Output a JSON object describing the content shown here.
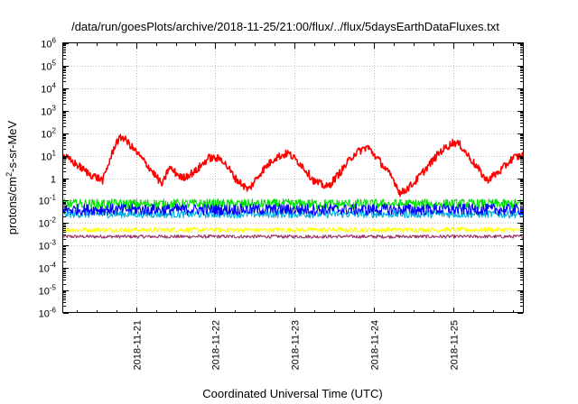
{
  "chart_data": {
    "type": "line",
    "title": "/data/run/goesPlots/archive/2018-11-25/21:00/flux/../flux/5daysEarthDataFluxes.txt",
    "xlabel": "Coordinated Universal Time (UTC)",
    "ylabel": {
      "base": "protons/cm",
      "sup": "2",
      "rest": "-s-sr-MeV"
    },
    "y_scale": "log",
    "ylim": [
      1e-06,
      1000000.0
    ],
    "y_ticks": [
      {
        "base": "10",
        "exp": "-6",
        "value": 1e-06
      },
      {
        "base": "10",
        "exp": "-5",
        "value": 1e-05
      },
      {
        "base": "10",
        "exp": "-4",
        "value": 0.0001
      },
      {
        "base": "10",
        "exp": "-3",
        "value": 0.001
      },
      {
        "base": "10",
        "exp": "-2",
        "value": 0.01
      },
      {
        "base": "10",
        "exp": "-1",
        "value": 0.1
      },
      {
        "base": "1",
        "exp": "",
        "value": 1
      },
      {
        "base": "10",
        "exp": "1",
        "value": 10
      },
      {
        "base": "10",
        "exp": "2",
        "value": 100
      },
      {
        "base": "10",
        "exp": "3",
        "value": 1000
      },
      {
        "base": "10",
        "exp": "4",
        "value": 10000
      },
      {
        "base": "10",
        "exp": "5",
        "value": 100000
      },
      {
        "base": "10",
        "exp": "6",
        "value": 1000000
      }
    ],
    "x_range": [
      "2018-11-20 02:00",
      "2018-11-25 21:00"
    ],
    "x_ticks": [
      "2018-11-21",
      "2018-11-22",
      "2018-11-23",
      "2018-11-24",
      "2018-11-25"
    ],
    "grid": true,
    "legend": "none",
    "series": [
      {
        "color": "#ff0000",
        "x": [
          "2018-11-20 02:00",
          "2018-11-20 06:00",
          "2018-11-20 10:00",
          "2018-11-20 14:00",
          "2018-11-20 18:00",
          "2018-11-20 20:00",
          "2018-11-21 00:00",
          "2018-11-21 04:00",
          "2018-11-21 08:00",
          "2018-11-21 10:00",
          "2018-11-21 14:00",
          "2018-11-21 18:00",
          "2018-11-21 22:00",
          "2018-11-22 02:00",
          "2018-11-22 06:00",
          "2018-11-22 10:00",
          "2018-11-22 14:00",
          "2018-11-22 18:00",
          "2018-11-22 22:00",
          "2018-11-23 02:00",
          "2018-11-23 06:00",
          "2018-11-23 10:00",
          "2018-11-23 14:00",
          "2018-11-23 18:00",
          "2018-11-23 22:00",
          "2018-11-24 02:00",
          "2018-11-24 06:00",
          "2018-11-24 08:00",
          "2018-11-24 12:00",
          "2018-11-24 16:00",
          "2018-11-24 20:00",
          "2018-11-25 00:00",
          "2018-11-25 02:00",
          "2018-11-25 06:00",
          "2018-11-25 10:00",
          "2018-11-25 14:00",
          "2018-11-25 18:00",
          "2018-11-25 21:00"
        ],
        "values": [
          10,
          4,
          1.5,
          0.8,
          40,
          70,
          15,
          3,
          0.5,
          3,
          1,
          2,
          8,
          7,
          1,
          0.3,
          2,
          8,
          13,
          4,
          0.7,
          0.4,
          2,
          12,
          25,
          5,
          0.8,
          0.2,
          0.6,
          3,
          15,
          40,
          30,
          5,
          0.8,
          2,
          8,
          10
        ],
        "noise": 0.35
      },
      {
        "color": "#00e000",
        "x": [
          "2018-11-20 02:00",
          "2018-11-25 21:00"
        ],
        "values": [
          0.07,
          0.07
        ],
        "noise": 0.45
      },
      {
        "color": "#0000ff",
        "x": [
          "2018-11-20 02:00",
          "2018-11-25 21:00"
        ],
        "values": [
          0.04,
          0.04
        ],
        "noise": 0.5
      },
      {
        "color": "#00b0e0",
        "x": [
          "2018-11-20 02:00",
          "2018-11-25 21:00"
        ],
        "values": [
          0.025,
          0.025
        ],
        "noise": 0.35
      },
      {
        "color": "#ffff00",
        "x": [
          "2018-11-20 02:00",
          "2018-11-25 21:00"
        ],
        "values": [
          0.005,
          0.005
        ],
        "noise": 0.2
      },
      {
        "color": "#993366",
        "x": [
          "2018-11-20 02:00",
          "2018-11-25 21:00"
        ],
        "values": [
          0.0025,
          0.0025
        ],
        "noise": 0.15
      }
    ]
  }
}
